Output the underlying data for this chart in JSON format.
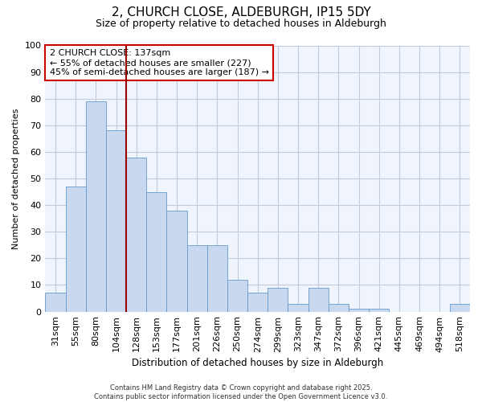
{
  "title1": "2, CHURCH CLOSE, ALDEBURGH, IP15 5DY",
  "title2": "Size of property relative to detached houses in Aldeburgh",
  "xlabel": "Distribution of detached houses by size in Aldeburgh",
  "ylabel": "Number of detached properties",
  "categories": [
    "31sqm",
    "55sqm",
    "80sqm",
    "104sqm",
    "128sqm",
    "153sqm",
    "177sqm",
    "201sqm",
    "226sqm",
    "250sqm",
    "274sqm",
    "299sqm",
    "323sqm",
    "347sqm",
    "372sqm",
    "396sqm",
    "421sqm",
    "445sqm",
    "469sqm",
    "494sqm",
    "518sqm"
  ],
  "values": [
    7,
    47,
    79,
    68,
    58,
    45,
    38,
    25,
    25,
    12,
    7,
    9,
    3,
    9,
    3,
    1,
    1,
    0,
    0,
    0,
    3
  ],
  "bar_color": "#c8d8ee",
  "bar_edge_color": "#6699cc",
  "vline_index": 4,
  "vline_color": "#990000",
  "annotation_text": "2 CHURCH CLOSE: 137sqm\n← 55% of detached houses are smaller (227)\n45% of semi-detached houses are larger (187) →",
  "annotation_box_color": "#ffffff",
  "annotation_box_edge": "#cc0000",
  "footer": "Contains HM Land Registry data © Crown copyright and database right 2025.\nContains public sector information licensed under the Open Government Licence v3.0.",
  "ylim": [
    0,
    100
  ],
  "fig_bg": "#ffffff",
  "axes_bg": "#f0f4fc",
  "grid_color": "#c0ccdd"
}
